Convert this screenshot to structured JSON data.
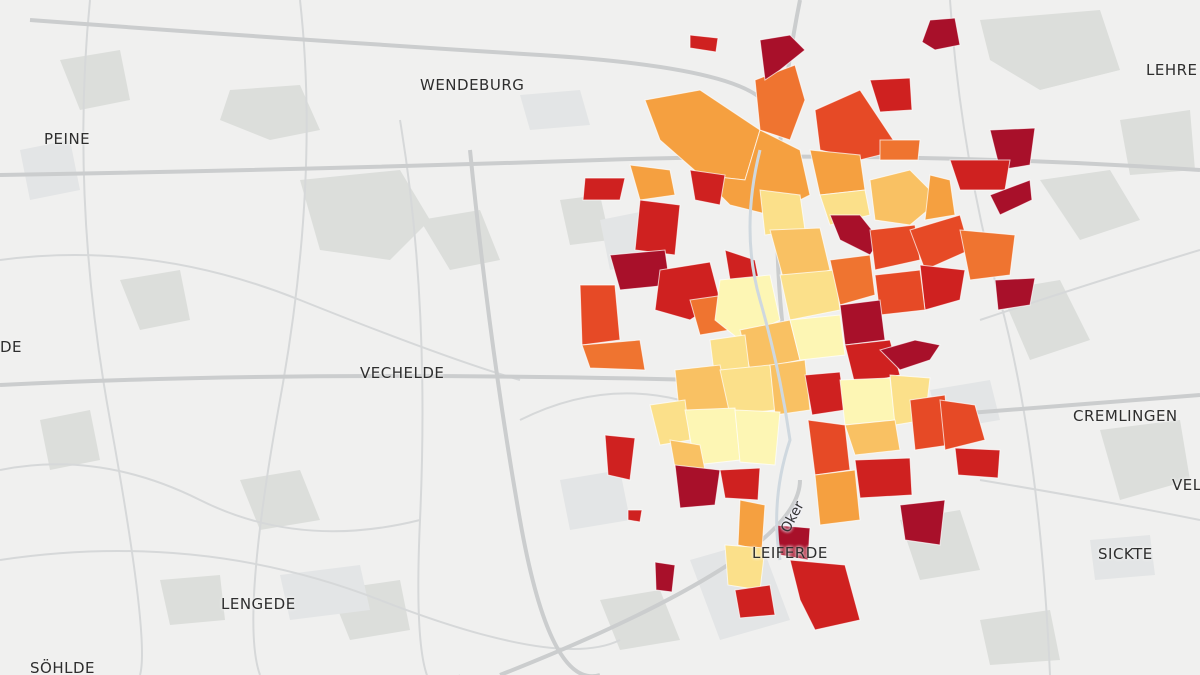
{
  "map": {
    "places": [
      {
        "id": "wendeburg",
        "name": "WENDEBURG"
      },
      {
        "id": "lehre",
        "name": "LEHRE"
      },
      {
        "id": "peine",
        "name": "PEINE"
      },
      {
        "id": "vechelde",
        "name": "VECHELDE"
      },
      {
        "id": "cremlingen",
        "name": "CREMLINGEN"
      },
      {
        "id": "leiferde",
        "name": "LEIFERDE"
      },
      {
        "id": "sickte",
        "name": "SICKTE"
      },
      {
        "id": "lengede",
        "name": "LENGEDE"
      },
      {
        "id": "soehlde",
        "name": "SÖHLDE"
      },
      {
        "id": "edge-left",
        "name": "DE"
      },
      {
        "id": "edge-right",
        "name": "VEL"
      }
    ],
    "river": {
      "name": "Oker"
    },
    "choropleth_colors": [
      "#fdf6b4",
      "#fbe08a",
      "#f9c163",
      "#f5a040",
      "#ef7430",
      "#e64a26",
      "#cf2120",
      "#a8102a"
    ],
    "basemap_colors": {
      "background": "#f0f0ef",
      "forest": "#dcdedb",
      "urban": "#e4e6e7",
      "road": "#d4d6d7",
      "major_road": "#c8cbcc"
    }
  }
}
